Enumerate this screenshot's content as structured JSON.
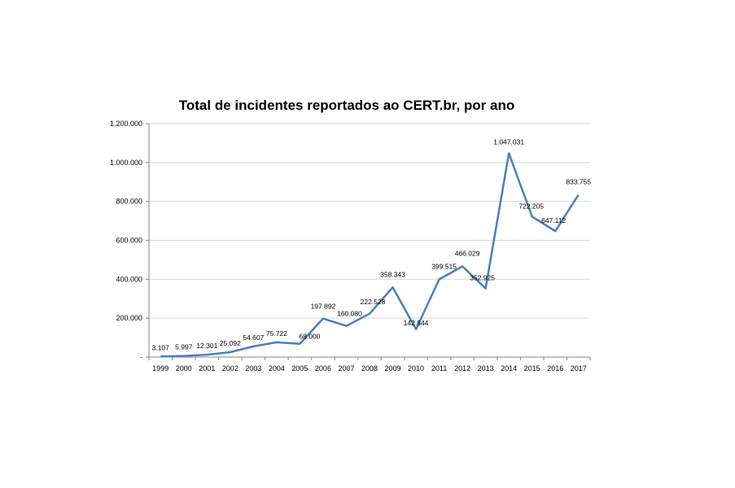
{
  "chart_data": {
    "type": "line",
    "title": "Total de incidentes reportados ao CERT.br, por ano",
    "xlabel": "",
    "ylabel": "",
    "categories": [
      "1999",
      "2000",
      "2001",
      "2002",
      "2003",
      "2004",
      "2005",
      "2006",
      "2007",
      "2008",
      "2009",
      "2010",
      "2011",
      "2012",
      "2013",
      "2014",
      "2015",
      "2016",
      "2017"
    ],
    "values": [
      3107,
      5997,
      12301,
      25092,
      54607,
      75722,
      68000,
      197892,
      160080,
      222528,
      358343,
      142844,
      399515,
      466029,
      352925,
      1047031,
      722205,
      647112,
      833755
    ],
    "data_labels": [
      "3.107",
      "5.997",
      "12.301",
      "25.092",
      "54.607",
      "75.722",
      "68.000",
      "197.892",
      "160.080",
      "222.528",
      "358.343",
      "142.844",
      "399.515",
      "466.029",
      "352.925",
      "1.047.031",
      "722.205",
      "647.112",
      "833.755"
    ],
    "ylim": [
      0,
      1200000
    ],
    "yticks": [
      0,
      200000,
      400000,
      600000,
      800000,
      1000000,
      1200000
    ],
    "ytick_labels": [
      "-",
      "200.000",
      "400.000",
      "600.000",
      "800.000",
      "1.000.000",
      "1.200.000"
    ],
    "grid": true,
    "legend": "none",
    "line_color": "#4a7ebb",
    "grid_color": "#d9d9d9"
  }
}
